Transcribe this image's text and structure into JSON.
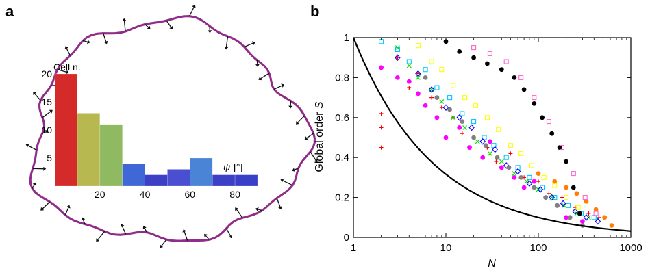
{
  "panel_labels": {
    "a": "a",
    "b": "b"
  },
  "chart_data": [
    {
      "type": "bar",
      "panel": "a",
      "ylabel": "Cell n.",
      "xlabel_symbol": "ψ",
      "xlabel_unit": "[°]",
      "bin_edges": [
        0,
        10,
        20,
        30,
        40,
        50,
        60,
        70,
        80,
        90
      ],
      "values": [
        20,
        13,
        11,
        4,
        2,
        3,
        5,
        2,
        2
      ],
      "colors": [
        "#d42a2a",
        "#b8b850",
        "#8fba62",
        "#3f68d6",
        "#3d3fc4",
        "#4a4fd2",
        "#4a84d6",
        "#3d3fc4",
        "#3a3fc8"
      ],
      "xticks": [
        20,
        40,
        60,
        80
      ],
      "yticks": [
        5,
        10,
        15,
        20
      ],
      "xlim": [
        0,
        90
      ],
      "ylim": [
        0,
        20
      ]
    },
    {
      "type": "scatter",
      "panel": "b",
      "xlabel": "N",
      "ylabel_prefix": "Global order ",
      "ylabel_symbol": "S",
      "xscale": "log",
      "xlim": [
        1,
        1000
      ],
      "ylim": [
        0,
        1
      ],
      "xticks": [
        {
          "value": 1,
          "label": "1"
        },
        {
          "value": 10,
          "label": "10"
        },
        {
          "value": 100,
          "label": "100"
        },
        {
          "value": 1000,
          "label": "1000"
        }
      ],
      "yticks": [
        {
          "value": 0,
          "label": "0"
        },
        {
          "value": 0.2,
          "label": "0.2"
        },
        {
          "value": 0.4,
          "label": "0.4"
        },
        {
          "value": 0.6,
          "label": "0.6"
        },
        {
          "value": 0.8,
          "label": "0.8"
        },
        {
          "value": 1,
          "label": "1"
        }
      ],
      "fit_curve": {
        "form": "S = N^(-1/2)",
        "color": "#000000"
      },
      "series_colors": [
        "#ff0000",
        "#ff00ff",
        "#00c8ff",
        "#00e000",
        "#0000ff",
        "#ffff00",
        "#000000",
        "#808080",
        "#ff8000",
        "#ff66cc"
      ],
      "series": [
        {
          "color": "#ff0000",
          "marker": "plus",
          "x": [
            2,
            2,
            2,
            3,
            4,
            5,
            7,
            9,
            12,
            15,
            20,
            28,
            35,
            50,
            70,
            100,
            130,
            180,
            250,
            350,
            450
          ],
          "y": [
            0.62,
            0.55,
            0.45,
            0.9,
            0.75,
            0.82,
            0.7,
            0.65,
            0.6,
            0.52,
            0.5,
            0.45,
            0.38,
            0.42,
            0.3,
            0.28,
            0.22,
            0.2,
            0.15,
            0.12,
            0.1
          ]
        },
        {
          "color": "#ff00ff",
          "marker": "circle",
          "x": [
            2,
            3,
            4,
            5,
            6,
            8,
            10,
            14,
            18,
            25,
            30,
            40,
            55,
            70,
            90,
            120,
            160,
            200,
            300
          ],
          "y": [
            0.85,
            0.8,
            0.78,
            0.72,
            0.66,
            0.6,
            0.5,
            0.55,
            0.45,
            0.4,
            0.48,
            0.35,
            0.3,
            0.25,
            0.28,
            0.2,
            0.16,
            0.1,
            0.08
          ]
        },
        {
          "color": "#00c8ff",
          "marker": "square",
          "x": [
            2,
            3,
            4,
            6,
            8,
            11,
            15,
            20,
            26,
            33,
            45,
            60,
            80,
            110,
            150,
            210,
            290,
            400
          ],
          "y": [
            0.98,
            0.94,
            0.88,
            0.84,
            0.75,
            0.7,
            0.62,
            0.58,
            0.5,
            0.46,
            0.4,
            0.35,
            0.3,
            0.25,
            0.2,
            0.16,
            0.12,
            0.1
          ]
        },
        {
          "color": "#00e000",
          "marker": "cross",
          "x": [
            3,
            4,
            5,
            7,
            9,
            12,
            16,
            22,
            30,
            40,
            55,
            75,
            100,
            140,
            190,
            260,
            350
          ],
          "y": [
            0.95,
            0.86,
            0.8,
            0.74,
            0.68,
            0.6,
            0.55,
            0.48,
            0.42,
            0.38,
            0.32,
            0.28,
            0.24,
            0.2,
            0.16,
            0.12,
            0.1
          ]
        },
        {
          "color": "#0000ff",
          "marker": "diamond",
          "x": [
            3,
            5,
            7,
            10,
            14,
            19,
            25,
            34,
            45,
            60,
            80,
            105,
            140,
            185,
            250,
            330,
            440
          ],
          "y": [
            0.9,
            0.82,
            0.74,
            0.65,
            0.6,
            0.55,
            0.48,
            0.44,
            0.36,
            0.33,
            0.27,
            0.24,
            0.2,
            0.17,
            0.13,
            0.1,
            0.08
          ]
        },
        {
          "color": "#ffff00",
          "marker": "square",
          "x": [
            5,
            7,
            9,
            12,
            16,
            21,
            28,
            37,
            50,
            65,
            85,
            115,
            150,
            200,
            270
          ],
          "y": [
            0.96,
            0.88,
            0.84,
            0.76,
            0.7,
            0.66,
            0.6,
            0.54,
            0.46,
            0.42,
            0.36,
            0.3,
            0.26,
            0.2,
            0.15
          ]
        },
        {
          "color": "#000000",
          "marker": "circle",
          "x": [
            10,
            14,
            20,
            28,
            40,
            55,
            70,
            90,
            110,
            140,
            170,
            200,
            240,
            280
          ],
          "y": [
            0.98,
            0.93,
            0.9,
            0.87,
            0.84,
            0.8,
            0.74,
            0.67,
            0.6,
            0.52,
            0.45,
            0.38,
            0.25,
            0.12
          ]
        },
        {
          "color": "#808080",
          "marker": "circle",
          "x": [
            6,
            8,
            11,
            15,
            20,
            27,
            36,
            48,
            65,
            90,
            120,
            160,
            220,
            300
          ],
          "y": [
            0.8,
            0.7,
            0.64,
            0.58,
            0.5,
            0.46,
            0.4,
            0.35,
            0.3,
            0.25,
            0.2,
            0.16,
            0.1,
            0.06
          ]
        },
        {
          "color": "#ff8000",
          "marker": "circle",
          "x": [
            100,
            150,
            200,
            260,
            330,
            420,
            520,
            620
          ],
          "y": [
            0.32,
            0.28,
            0.25,
            0.22,
            0.18,
            0.14,
            0.1,
            0.06
          ]
        },
        {
          "color": "#ff66cc",
          "marker": "square",
          "x": [
            20,
            30,
            45,
            65,
            90,
            130,
            180,
            240,
            320,
            420
          ],
          "y": [
            0.95,
            0.92,
            0.88,
            0.8,
            0.7,
            0.58,
            0.45,
            0.32,
            0.2,
            0.12
          ]
        }
      ]
    }
  ]
}
